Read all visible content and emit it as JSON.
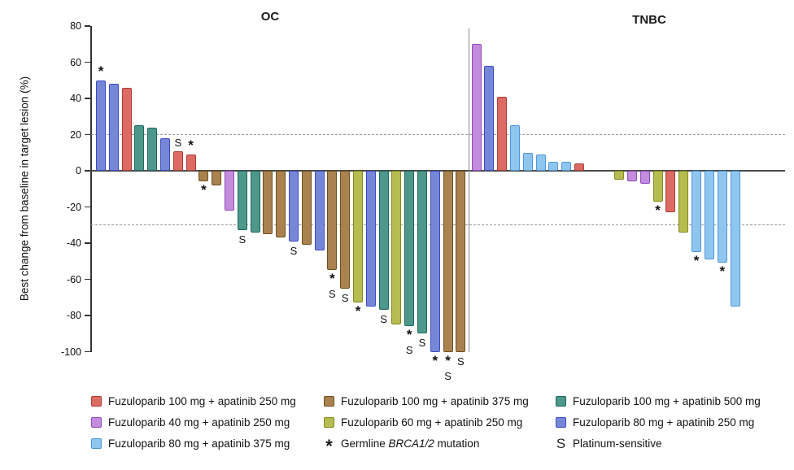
{
  "figure": {
    "ylabel": "Best change from baseline in target lesion (%)",
    "left_panel_title": "OC",
    "right_panel_title": "TNBC"
  },
  "colors": {
    "red": {
      "fill": "#DB6B63",
      "border": "#AE3C36"
    },
    "orchid": {
      "fill": "#C38CDC",
      "border": "#9149BE"
    },
    "sky": {
      "fill": "#8FC6F0",
      "border": "#4C97DC"
    },
    "brown": {
      "fill": "#A9824F",
      "border": "#6E5020"
    },
    "olive": {
      "fill": "#B6BC50",
      "border": "#808A1E"
    },
    "teal": {
      "fill": "#4D988B",
      "border": "#1B685E"
    },
    "periwinkle": {
      "fill": "#7687D8",
      "border": "#3A4BC2"
    }
  },
  "legend": {
    "columns": [
      {
        "items": [
          {
            "type": "swatch",
            "color": "red",
            "label": "Fuzuloparib 100 mg + apatinib 250 mg"
          },
          {
            "type": "swatch",
            "color": "orchid",
            "label": "Fuzuloparib 40 mg + apatinib 250 mg"
          },
          {
            "type": "swatch",
            "color": "sky",
            "label": "Fuzuloparib 80 mg + apatinib 375 mg"
          }
        ]
      },
      {
        "items": [
          {
            "type": "swatch",
            "color": "brown",
            "label": "Fuzuloparib 100 mg + apatinib 375 mg"
          },
          {
            "type": "swatch",
            "color": "olive",
            "label": "Fuzuloparib 60 mg + apatinib 250 mg"
          },
          {
            "type": "marker",
            "symbol": "*",
            "label_prefix": "Germline ",
            "label_italic": "BRCA1/2",
            "label_suffix": " mutation"
          }
        ]
      },
      {
        "items": [
          {
            "type": "swatch",
            "color": "teal",
            "label": "Fuzuloparib 100 mg + apatinib 500 mg"
          },
          {
            "type": "swatch",
            "color": "periwinkle",
            "label": "Fuzuloparib 80 mg + apatinib 250 mg"
          },
          {
            "type": "marker",
            "symbol": "S",
            "label": "Platinum-sensitive"
          }
        ]
      }
    ]
  },
  "chart_data": {
    "type": "bar",
    "title": "",
    "ylabel": "Best change from baseline in target lesion (%)",
    "ylim": [
      -100,
      80
    ],
    "yticks": [
      80,
      60,
      40,
      20,
      0,
      -20,
      -40,
      -60,
      -80,
      -100
    ],
    "reference_lines": [
      20,
      -30
    ],
    "marker_meanings": {
      "*": "Germline BRCA1/2 mutation",
      "S": "Platinum-sensitive"
    },
    "arms": {
      "red": "Fuzuloparib 100 mg + apatinib 250 mg",
      "orchid": "Fuzuloparib 40 mg + apatinib 250 mg",
      "sky": "Fuzuloparib 80 mg + apatinib 375 mg",
      "brown": "Fuzuloparib 100 mg + apatinib 375 mg",
      "olive": "Fuzuloparib 60 mg + apatinib 250 mg",
      "teal": "Fuzuloparib 100 mg + apatinib 500 mg",
      "periwinkle": "Fuzuloparib 80 mg + apatinib 250 mg"
    },
    "groups": [
      {
        "name": "OC",
        "bars": [
          {
            "v": 50,
            "c": "periwinkle",
            "m": "*"
          },
          {
            "v": 48,
            "c": "periwinkle",
            "m": ""
          },
          {
            "v": 46,
            "c": "red",
            "m": ""
          },
          {
            "v": 25,
            "c": "teal",
            "m": ""
          },
          {
            "v": 24,
            "c": "teal",
            "m": ""
          },
          {
            "v": 18,
            "c": "periwinkle",
            "m": ""
          },
          {
            "v": 11,
            "c": "red",
            "m": "S"
          },
          {
            "v": 9,
            "c": "red",
            "m": "*"
          },
          {
            "v": -6,
            "c": "brown",
            "m": "*"
          },
          {
            "v": -8,
            "c": "brown",
            "m": ""
          },
          {
            "v": -22,
            "c": "orchid",
            "m": ""
          },
          {
            "v": -33,
            "c": "teal",
            "m": "S"
          },
          {
            "v": -34,
            "c": "teal",
            "m": ""
          },
          {
            "v": -35,
            "c": "brown",
            "m": ""
          },
          {
            "v": -37,
            "c": "brown",
            "m": ""
          },
          {
            "v": -39,
            "c": "periwinkle",
            "m": "S"
          },
          {
            "v": -41,
            "c": "brown",
            "m": ""
          },
          {
            "v": -44,
            "c": "periwinkle",
            "m": ""
          },
          {
            "v": -55,
            "c": "brown",
            "m": "*S"
          },
          {
            "v": -65,
            "c": "brown",
            "m": "S"
          },
          {
            "v": -73,
            "c": "olive",
            "m": "*"
          },
          {
            "v": -75,
            "c": "periwinkle",
            "m": ""
          },
          {
            "v": -77,
            "c": "teal",
            "m": "S"
          },
          {
            "v": -85,
            "c": "olive",
            "m": ""
          },
          {
            "v": -86,
            "c": "teal",
            "m": "*S"
          },
          {
            "v": -90,
            "c": "teal",
            "m": "S"
          },
          {
            "v": -100,
            "c": "periwinkle",
            "m": "*"
          },
          {
            "v": -100,
            "c": "brown",
            "m": "*S"
          },
          {
            "v": -100,
            "c": "brown",
            "m": "S"
          }
        ]
      },
      {
        "name": "TNBC",
        "bars": [
          {
            "v": 70,
            "c": "orchid",
            "m": ""
          },
          {
            "v": 58,
            "c": "periwinkle",
            "m": ""
          },
          {
            "v": 41,
            "c": "red",
            "m": ""
          },
          {
            "v": 25,
            "c": "sky",
            "m": ""
          },
          {
            "v": 10,
            "c": "sky",
            "m": ""
          },
          {
            "v": 9,
            "c": "sky",
            "m": ""
          },
          {
            "v": 5,
            "c": "sky",
            "m": ""
          },
          {
            "v": 5,
            "c": "sky",
            "m": ""
          },
          {
            "v": 4,
            "c": "red",
            "m": ""
          },
          {
            "v": -5,
            "c": "olive",
            "m": ""
          },
          {
            "v": -6,
            "c": "orchid",
            "m": ""
          },
          {
            "v": -7,
            "c": "orchid",
            "m": ""
          },
          {
            "v": -17,
            "c": "olive",
            "m": "*"
          },
          {
            "v": -23,
            "c": "red",
            "m": ""
          },
          {
            "v": -34,
            "c": "olive",
            "m": ""
          },
          {
            "v": -45,
            "c": "sky",
            "m": "*"
          },
          {
            "v": -49,
            "c": "sky",
            "m": ""
          },
          {
            "v": -51,
            "c": "sky",
            "m": "*"
          },
          {
            "v": -75,
            "c": "sky",
            "m": ""
          }
        ]
      }
    ]
  }
}
